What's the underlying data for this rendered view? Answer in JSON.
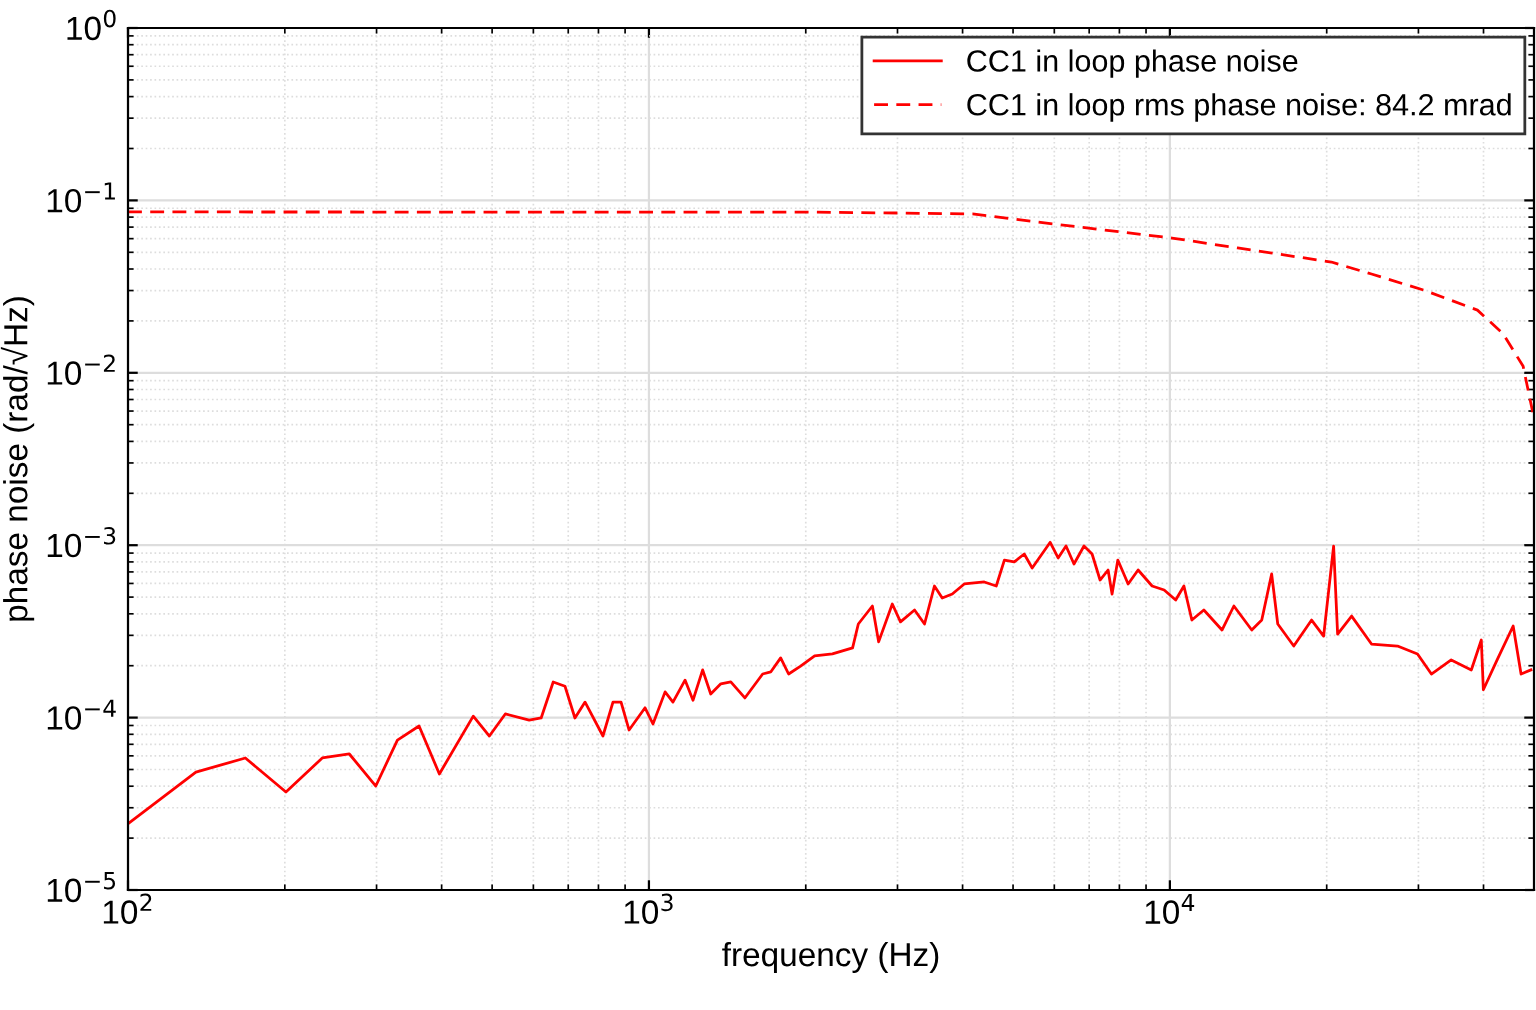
{
  "chart_data": {
    "type": "line",
    "xlabel": "frequency (Hz)",
    "ylabel": "phase noise (rad/√Hz)",
    "log": "xy",
    "grid": true,
    "legend": "top right",
    "xlim": [
      100,
      50000
    ],
    "xticks": [
      {
        "value": 100,
        "label": "10$^{2}$"
      },
      {
        "value": 1000,
        "label": "10$^{3}$"
      },
      {
        "value": 10000,
        "label": "10$^{4}$"
      }
    ],
    "ylim": [
      1e-05,
      1
    ],
    "yticks": [
      {
        "value": 1e-05,
        "label": "10$^{−5}$"
      },
      {
        "value": 0.0001,
        "label": "10$^{−4}$"
      },
      {
        "value": 0.001,
        "label": "10$^{−3}$"
      },
      {
        "value": 0.01,
        "label": "10$^{−2}$"
      },
      {
        "value": 0.1,
        "label": "10$^{−1}$"
      },
      {
        "value": 1,
        "label": "10$^{0}$"
      }
    ],
    "series": [
      {
        "name": "CC1 in loop phase noise",
        "color": "#ff0000",
        "line_style": "solid",
        "x": [
          100,
          135,
          168,
          201,
          236,
          266,
          299,
          329,
          362,
          396,
          460,
          494,
          530,
          589,
          621,
          655,
          690,
          721,
          754,
          816,
          853,
          884,
          916,
          983,
          1018,
          1074,
          1112,
          1173,
          1215,
          1268,
          1314,
          1374,
          1436,
          1528,
          1653,
          1713,
          1790,
          1854,
          1955,
          2080,
          2250,
          2460,
          2523,
          2685,
          2760,
          2932,
          3040,
          3235,
          3381,
          3532,
          3656,
          3822,
          4030,
          4402,
          4642,
          4812,
          5027,
          5253,
          5441,
          5892,
          6102,
          6319,
          6545,
          6841,
          7090,
          7345,
          7610,
          7745,
          7945,
          8315,
          8690,
          9245,
          9750,
          10260,
          10640,
          11020,
          11620,
          12590,
          13270,
          14360,
          15010,
          15680,
          16110,
          17290,
          18710,
          19730,
          20620,
          20990,
          22330,
          24380,
          27350,
          29880,
          31770,
          34680,
          37900,
          39610,
          39970,
          42480,
          45600,
          47220,
          49320
        ],
        "values": [
          2.42e-05,
          4.83e-05,
          5.83e-05,
          3.7e-05,
          5.83e-05,
          6.15e-05,
          4.01e-05,
          7.41e-05,
          8.94e-05,
          4.71e-05,
          0.000102,
          7.82e-05,
          0.000105,
          9.68e-05,
          9.95e-05,
          0.000161,
          0.000152,
          9.95e-05,
          0.000123,
          7.82e-05,
          0.000123,
          0.000123,
          8.47e-05,
          0.000114,
          9.18e-05,
          0.000141,
          0.000123,
          0.000165,
          0.000126,
          0.000189,
          0.000137,
          0.000157,
          0.000161,
          0.00013,
          0.000179,
          0.000184,
          0.000222,
          0.000179,
          0.000199,
          0.000228,
          0.000234,
          0.000254,
          0.000349,
          0.000444,
          0.000275,
          0.000456,
          0.000359,
          0.000421,
          0.000349,
          0.00058,
          0.000494,
          0.000521,
          0.000596,
          0.000612,
          0.00058,
          0.00082,
          0.0008,
          0.000889,
          0.000738,
          0.00104,
          0.000843,
          0.000989,
          0.000778,
          0.000989,
          0.000889,
          0.000628,
          0.000718,
          0.000521,
          0.00082,
          0.000596,
          0.000718,
          0.00058,
          0.00055,
          0.000481,
          0.00058,
          0.000368,
          0.000421,
          0.000322,
          0.000444,
          0.000322,
          0.000368,
          0.000681,
          0.000349,
          0.00026,
          0.000368,
          0.000297,
          0.000989,
          0.000305,
          0.000388,
          0.000267,
          0.00026,
          0.000234,
          0.000179,
          0.000216,
          0.000189,
          0.000282,
          0.000145,
          0.000216,
          0.00034,
          0.000179,
          0.000189
        ]
      },
      {
        "name": "CC1 in loop rms phase noise: 84.2 mrad",
        "color": "#ff0000",
        "line_style": "dashed",
        "x": [
          100,
          2000,
          3000,
          4180,
          5585,
          7480,
          10090,
          13490,
          20420,
          24380,
          30690,
          38940,
          43650,
          47660,
          49800
        ],
        "values": [
          0.0857,
          0.0855,
          0.0845,
          0.0834,
          0.0749,
          0.0673,
          0.0605,
          0.053,
          0.0439,
          0.0374,
          0.0302,
          0.0231,
          0.0168,
          0.0109,
          0.00577
        ]
      }
    ]
  }
}
